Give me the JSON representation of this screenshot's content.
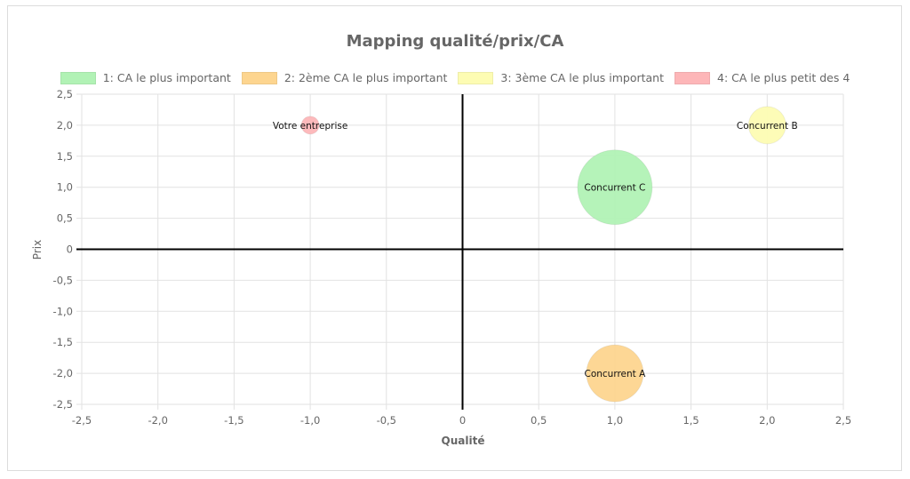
{
  "chart_data": {
    "type": "bubble",
    "title": "Mapping qualité/prix/CA",
    "xlabel": "Qualité",
    "ylabel": "Prix",
    "xlim": [
      -2.5,
      2.5
    ],
    "ylim": [
      -2.5,
      2.5
    ],
    "grid": true,
    "legend_position": "top",
    "x_ticks": [
      "-2,5",
      "-2,0",
      "-1,5",
      "-1,0",
      "-0,5",
      "0",
      "0,5",
      "1,0",
      "1,5",
      "2,0",
      "2,5"
    ],
    "y_ticks": [
      "2,5",
      "2,0",
      "1,5",
      "1,0",
      "0,5",
      "0",
      "-0,5",
      "-1,0",
      "-1,5",
      "-2,0",
      "-2,5"
    ],
    "legend": [
      {
        "label": "1: CA le plus important",
        "color": "#b1f2b5"
      },
      {
        "label": "2: 2ème CA le plus important",
        "color": "#fdd58f"
      },
      {
        "label": "3: 3ème CA le plus important",
        "color": "#fdfcb3"
      },
      {
        "label": "4: CA le plus petit des 4",
        "color": "#fdb6b8"
      }
    ],
    "series": [
      {
        "name": "Votre entreprise",
        "x": -1.0,
        "y": 2.0,
        "r": 10,
        "rank": 4,
        "color": "#fdb6b8"
      },
      {
        "name": "Concurrent B",
        "x": 2.0,
        "y": 2.0,
        "r": 21,
        "rank": 3,
        "color": "#fdfcb3"
      },
      {
        "name": "Concurrent C",
        "x": 1.0,
        "y": 1.0,
        "r": 42,
        "rank": 1,
        "color": "#b1f2b5"
      },
      {
        "name": "Concurrent A",
        "x": 1.0,
        "y": -2.0,
        "r": 32,
        "rank": 2,
        "color": "#fdd58f"
      }
    ]
  }
}
